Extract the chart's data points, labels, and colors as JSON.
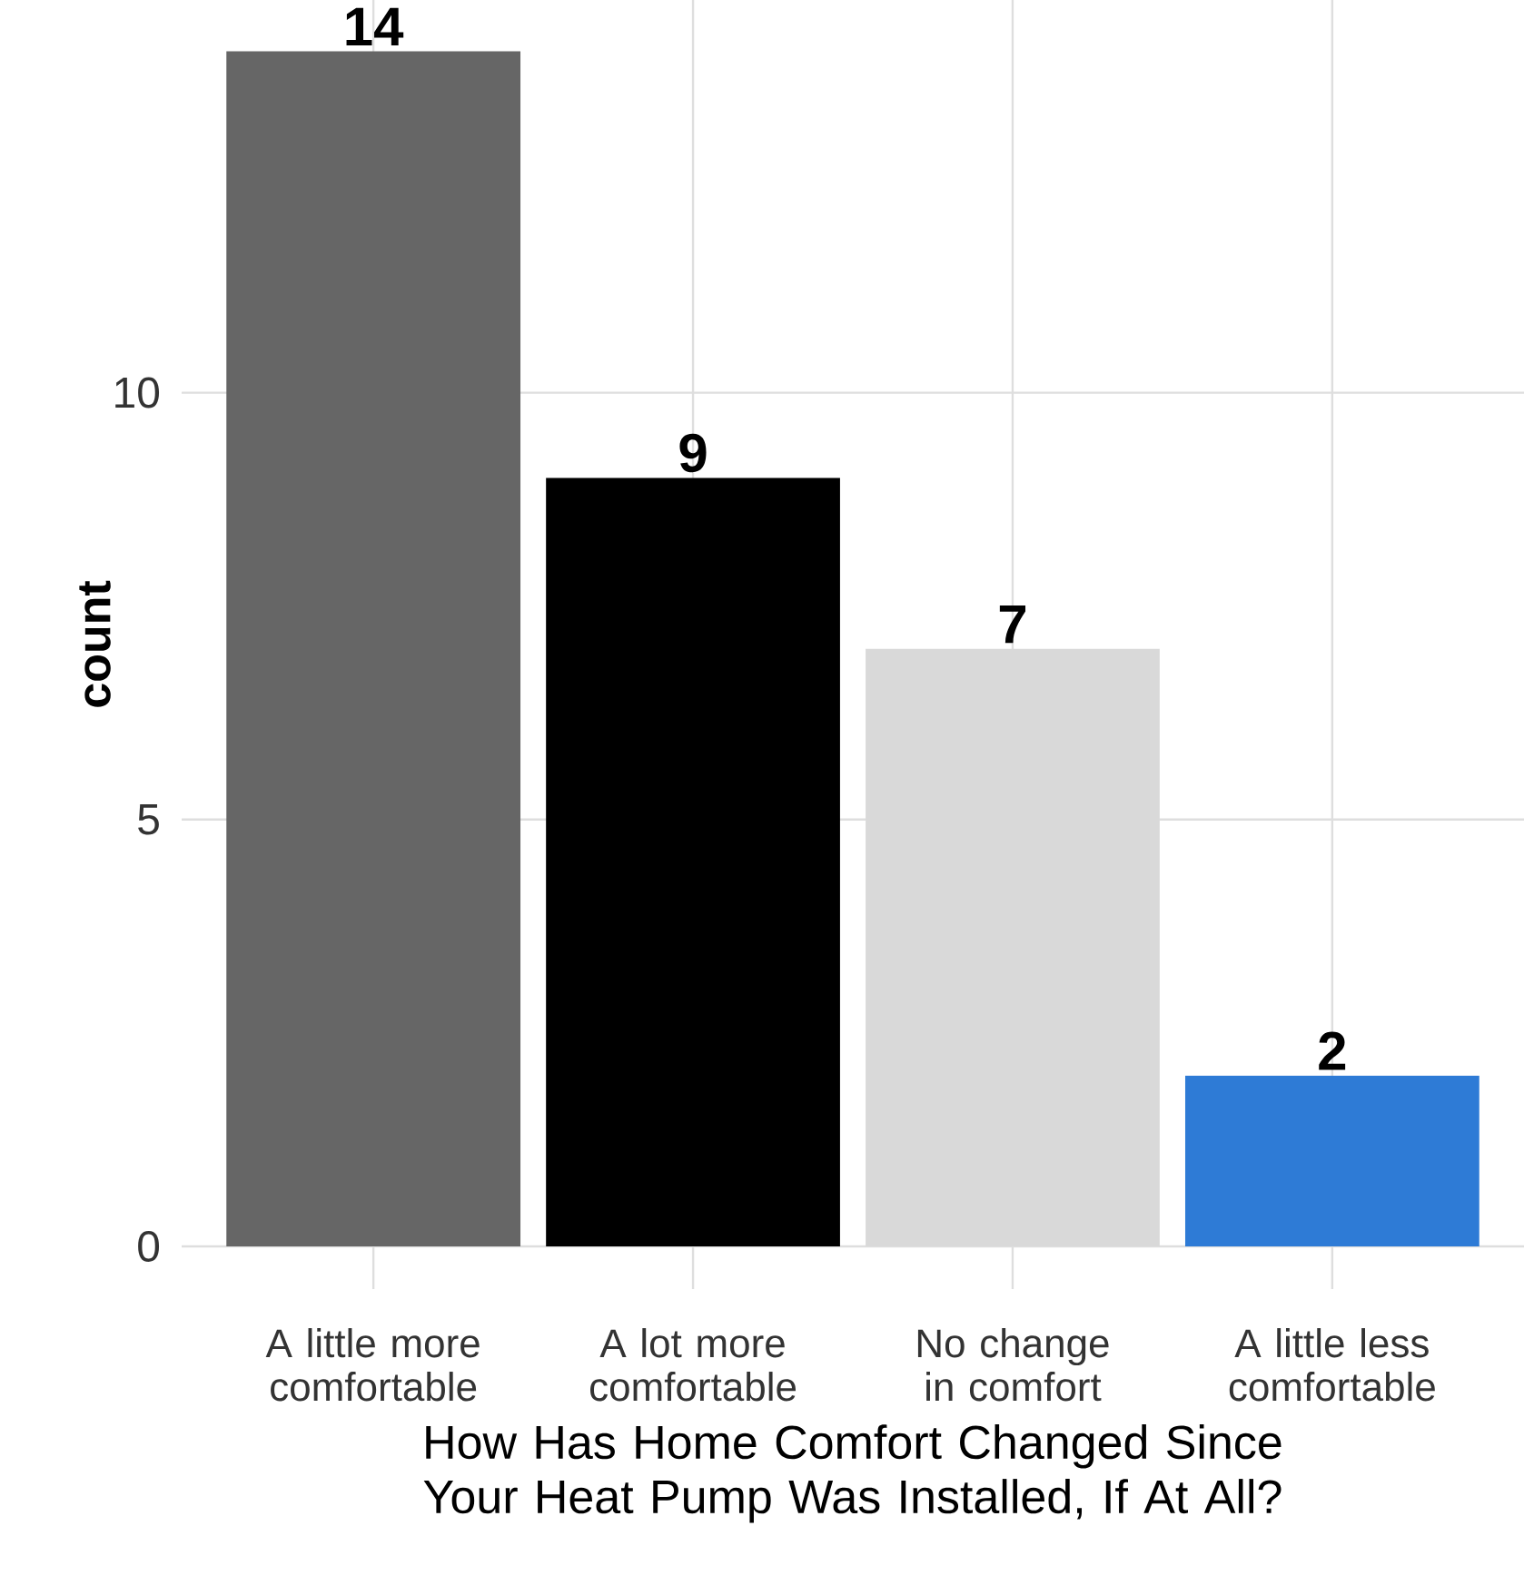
{
  "chart_data": {
    "type": "bar",
    "xlabel": "How Has Home Comfort Changed Since Your Heat Pump Was Installed, If At All?",
    "ylabel": "count",
    "categories": [
      "A little more comfortable",
      "A lot more comfortable",
      "No change in comfort",
      "A little less comfortable"
    ],
    "values": [
      14,
      9,
      7,
      2
    ],
    "colors": [
      "#666666",
      "#000000",
      "#d9d9d9",
      "#2e7bd6"
    ],
    "ylim": [
      -0.5,
      14.6
    ],
    "yticks": [
      0,
      5,
      10
    ],
    "grid": true,
    "data_labels": true
  }
}
